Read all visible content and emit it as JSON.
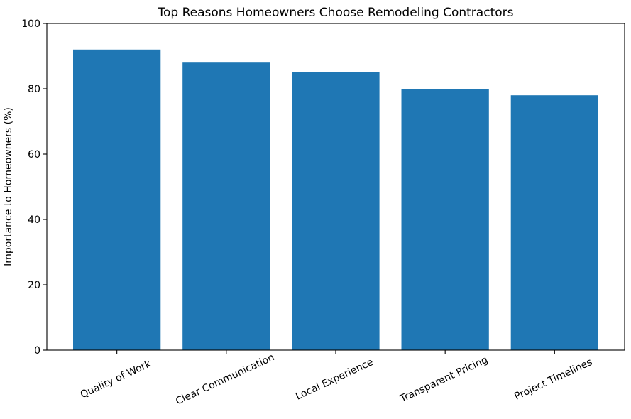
{
  "chart_data": {
    "type": "bar",
    "title": "Top Reasons Homeowners Choose Remodeling Contractors",
    "xlabel": "",
    "ylabel": "Importance to Homeowners (%)",
    "categories": [
      "Quality of Work",
      "Clear Communication",
      "Local Experience",
      "Transparent Pricing",
      "Project Timelines"
    ],
    "values": [
      92,
      88,
      85,
      80,
      78
    ],
    "ylim": [
      0,
      100
    ],
    "yticks": [
      0,
      20,
      40,
      60,
      80,
      100
    ],
    "x_tick_rotation_deg": 25,
    "bar_color": "#1f77b4",
    "axis_color": "#000000",
    "background_color": "#ffffff",
    "grid": false,
    "legend": "none"
  }
}
